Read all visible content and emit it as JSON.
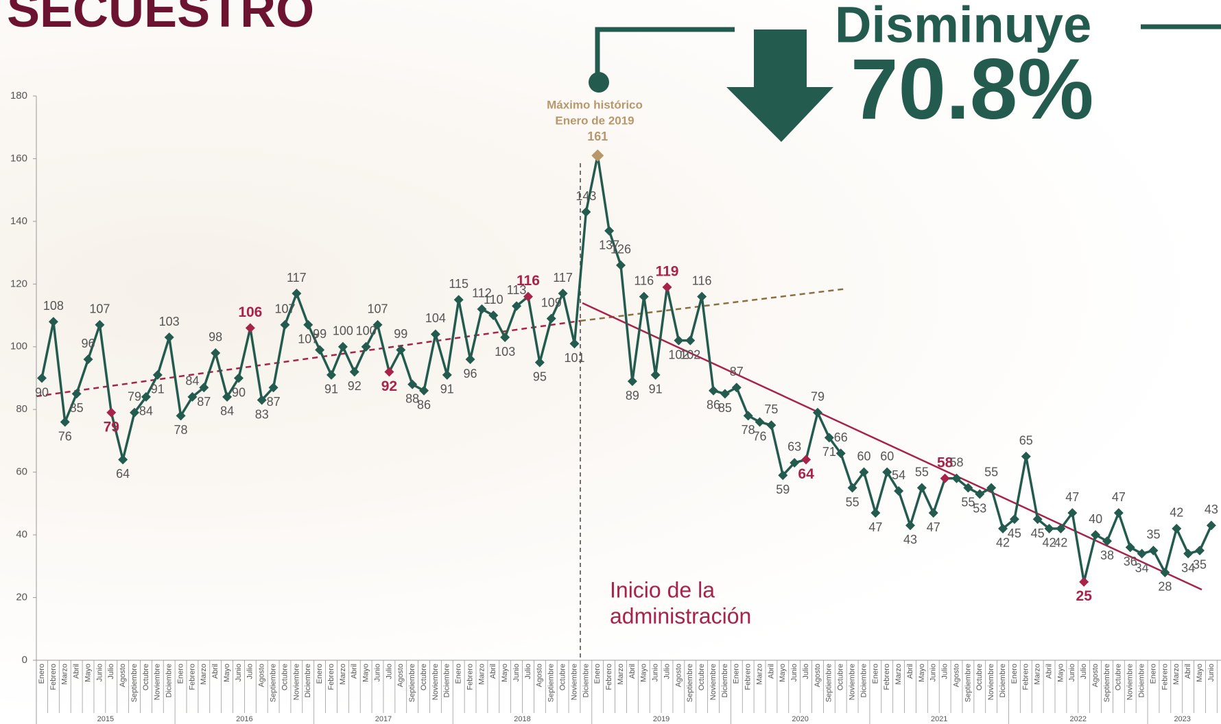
{
  "chart_data": {
    "type": "line",
    "title": "SECUESTRO",
    "headline": "Disminuye",
    "headline_value": "70.8%",
    "annotations": [
      "Máximo histórico",
      "Enero de 2019",
      "Inicio de la",
      "administración"
    ],
    "categories": [
      "Enero",
      "Febrero",
      "Marzo",
      "Abril",
      "Mayo",
      "Junio",
      "Julio",
      "Agosto",
      "Septiembre",
      "Octubre",
      "Noviembre",
      "Diciembre",
      "Enero",
      "Febrero",
      "Marzo",
      "Abril",
      "Mayo",
      "Junio",
      "Julio",
      "Agosto",
      "Septiembre",
      "Octubre",
      "Noviembre",
      "Diciembre",
      "Enero",
      "Febrero",
      "Marzo",
      "Abril",
      "Mayo",
      "Junio",
      "Julio",
      "Agosto",
      "Septiembre",
      "Octubre",
      "Noviembre",
      "Diciembre",
      "Enero",
      "Febrero",
      "Marzo",
      "Abril",
      "Mayo",
      "Junio",
      "Julio",
      "Agosto",
      "Septiembre",
      "Octubre",
      "Noviembre",
      "Diciembre",
      "Enero",
      "Febrero",
      "Marzo",
      "Abril",
      "Mayo",
      "Junio",
      "Julio",
      "Agosto",
      "Septiembre",
      "Octubre",
      "Noviembre",
      "Diciembre",
      "Enero",
      "Febrero",
      "Marzo",
      "Abril",
      "Mayo",
      "Junio",
      "Julio",
      "Agosto",
      "Septiembre",
      "Octubre",
      "Noviembre",
      "Diciembre",
      "Enero",
      "Febrero",
      "Marzo",
      "Abril",
      "Mayo",
      "Junio",
      "Julio",
      "Agosto",
      "Septiembre",
      "Octubre",
      "Noviembre",
      "Diciembre",
      "Enero",
      "Febrero",
      "Marzo",
      "Abril",
      "Mayo",
      "Junio",
      "Julio",
      "Agosto",
      "Septiembre",
      "Octubre",
      "Noviembre",
      "Diciembre",
      "Enero",
      "Febrero",
      "Marzo",
      "Abril",
      "Mayo",
      "Junio"
    ],
    "years": [
      "2015",
      "2016",
      "2017",
      "2018",
      "2019",
      "2020",
      "2021",
      "2022",
      "2023"
    ],
    "series": [
      {
        "name": "Secuestro",
        "color": "#235b4e",
        "values": [
          90,
          108,
          76,
          85,
          96,
          107,
          79,
          64,
          79,
          84,
          91,
          103,
          78,
          84,
          87,
          98,
          84,
          90,
          106,
          83,
          87,
          107,
          117,
          107,
          99,
          91,
          100,
          92,
          100,
          107,
          92,
          99,
          88,
          86,
          104,
          91,
          115,
          96,
          112,
          110,
          103,
          113,
          116,
          95,
          109,
          117,
          101,
          143,
          161,
          137,
          126,
          89,
          116,
          91,
          119,
          102,
          102,
          116,
          86,
          85,
          87,
          78,
          76,
          75,
          59,
          63,
          64,
          79,
          71,
          66,
          55,
          60,
          47,
          60,
          54,
          43,
          55,
          47,
          58,
          58,
          55,
          53,
          55,
          42,
          45,
          65,
          45,
          42,
          42,
          47,
          25,
          40,
          38,
          47,
          36,
          34,
          35,
          28,
          42,
          34,
          35,
          43
        ]
      }
    ],
    "highlight": {
      "color": "#a8234a",
      "category": "Julio"
    },
    "max_color": "#b8976a",
    "ylim": [
      0,
      180
    ],
    "yticks": [
      0,
      20,
      40,
      60,
      80,
      100,
      120,
      140,
      160,
      180
    ]
  }
}
